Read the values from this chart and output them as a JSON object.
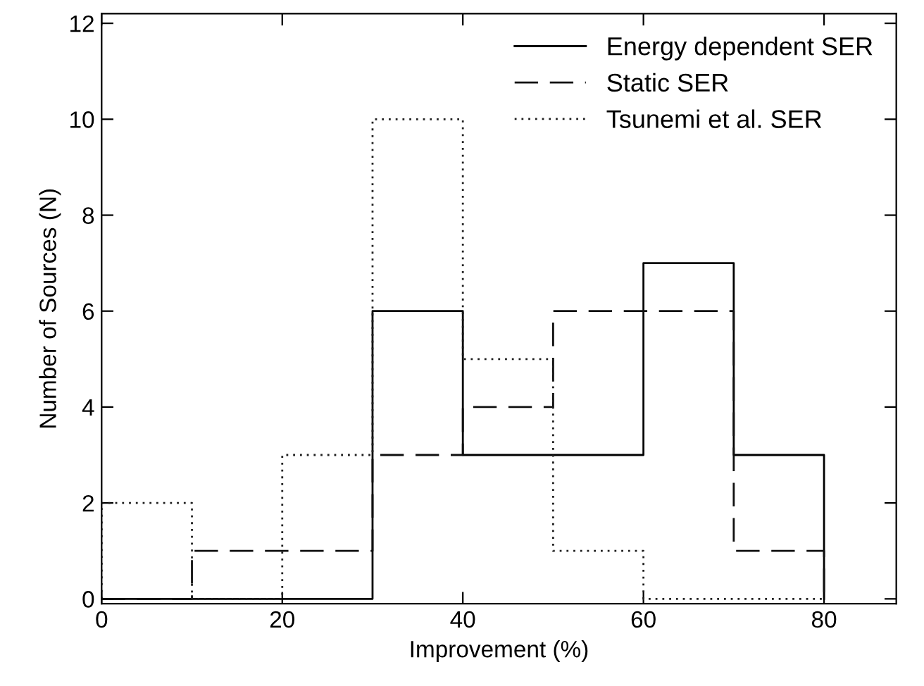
{
  "chart_data": {
    "type": "histogram",
    "xlabel": "Improvement (%)",
    "ylabel": "Number of Sources (N)",
    "bins": [
      0,
      10,
      20,
      30,
      40,
      50,
      60,
      70,
      80
    ],
    "series": [
      {
        "name": "Energy dependent SER",
        "color": "#000000",
        "line_style": "solid",
        "values": [
          0,
          0,
          0,
          6,
          3,
          3,
          7,
          3
        ]
      },
      {
        "name": "Static SER",
        "color": "#101010",
        "line_style": "dashed",
        "values": [
          0,
          1,
          1,
          3,
          4,
          6,
          6,
          1
        ]
      },
      {
        "name": "Tsunemi et al. SER",
        "color": "#202020",
        "line_style": "dotted",
        "values": [
          2,
          0,
          3,
          10,
          5,
          1,
          0,
          0
        ]
      }
    ],
    "xlim": [
      0,
      88
    ],
    "xticks": [
      0,
      20,
      40,
      60,
      80
    ],
    "ylim": [
      -0.1,
      12.2
    ],
    "yticks": [
      0,
      2,
      4,
      6,
      8,
      10,
      12
    ],
    "grid": false,
    "legend": "top right"
  }
}
